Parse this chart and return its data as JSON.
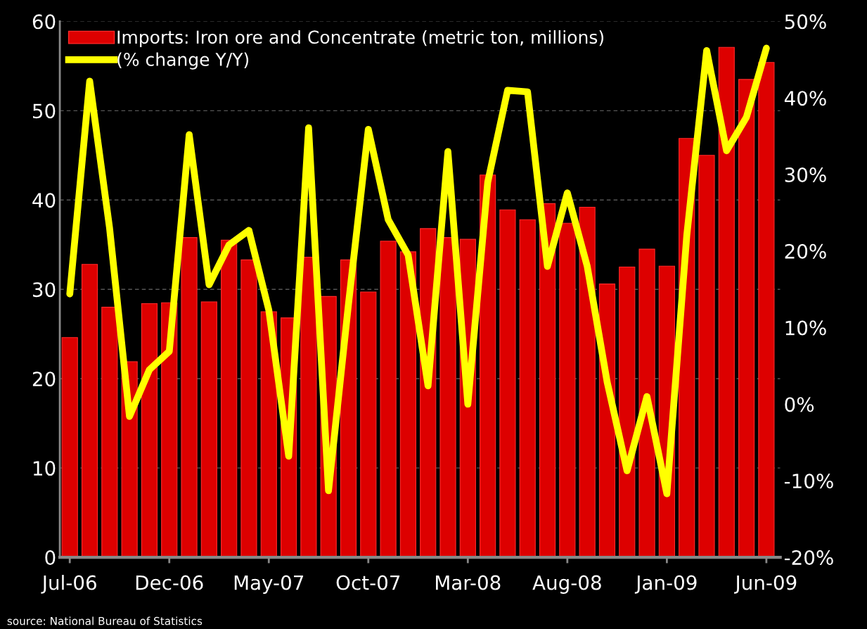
{
  "chart_data": {
    "type": "bar",
    "categories": [
      "Jul-06",
      null,
      null,
      null,
      null,
      "Dec-06",
      null,
      null,
      null,
      null,
      "May-07",
      null,
      null,
      null,
      null,
      "Oct-07",
      null,
      null,
      null,
      null,
      "Mar-08",
      null,
      null,
      null,
      null,
      "Aug-08",
      null,
      null,
      null,
      null,
      "Jan-09",
      null,
      null,
      null,
      null,
      "Jun-09"
    ],
    "series": [
      {
        "name": "Imports: Iron ore and Concentrate (metric ton, millions)",
        "color": "#dd0000",
        "values": [
          24.6,
          32.8,
          28.0,
          21.9,
          28.4,
          28.5,
          35.8,
          28.6,
          35.5,
          33.3,
          27.5,
          26.8,
          33.6,
          29.2,
          33.3,
          29.7,
          35.4,
          34.2,
          36.8,
          35.8,
          35.6,
          42.8,
          38.9,
          37.8,
          39.6,
          37.4,
          39.2,
          30.6,
          32.5,
          34.5,
          32.6,
          46.9,
          45.0,
          57.1,
          53.5,
          55.4
        ]
      },
      {
        "name": "(% change Y/Y)",
        "type": "line",
        "axis": "y2",
        "color": "#ffff00",
        "values": [
          14.4,
          42.2,
          23,
          -1.6,
          4.5,
          6.9,
          35.2,
          15.6,
          20.8,
          22.7,
          12.3,
          -6.8,
          36.1,
          -11.3,
          13,
          35.9,
          24.1,
          19.5,
          2.4,
          33.0,
          0.0,
          29,
          41.0,
          40.8,
          18.0,
          27.6,
          18.0,
          2.9,
          -8.7,
          1.0,
          -11.7,
          22,
          46.2,
          33.1,
          37.5,
          46.5
        ]
      }
    ],
    "ylim": [
      0,
      60
    ],
    "yticks": [
      0,
      10,
      20,
      30,
      40,
      50,
      60
    ],
    "y2lim": [
      -20,
      50
    ],
    "y2ticks": [
      {
        "value": -20,
        "label": "-20%"
      },
      {
        "value": -10,
        "label": "-10%"
      },
      {
        "value": 0,
        "label": "0%"
      },
      {
        "value": 10,
        "label": "10%"
      },
      {
        "value": 20,
        "label": "20%"
      },
      {
        "value": 30,
        "label": "30%"
      },
      {
        "value": 40,
        "label": "40%"
      },
      {
        "value": 50,
        "label": "50%"
      }
    ],
    "grid": "y",
    "legend": "top left",
    "marker": "none",
    "line_style": "solid",
    "annotations": [
      "source: National Bureau of Statistics"
    ]
  }
}
